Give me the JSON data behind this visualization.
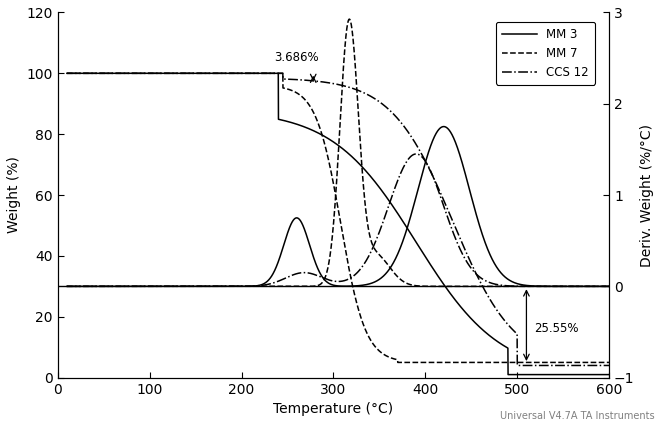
{
  "xlabel": "Temperature (°C)",
  "ylabel_left": "Weight (%)",
  "ylabel_right": "Deriv. Weight (%/°C)",
  "xlim": [
    0,
    600
  ],
  "ylim_left": [
    0,
    120
  ],
  "ylim_right": [
    -1,
    3
  ],
  "xticks": [
    0,
    100,
    200,
    300,
    400,
    500,
    600
  ],
  "yticks_left": [
    0,
    20,
    40,
    60,
    80,
    100,
    120
  ],
  "yticks_right": [
    -1,
    0,
    1,
    2,
    3
  ],
  "annotation1_text": "3.686%",
  "annotation2_text": "25.55%",
  "footer_text": "Universal V4.7A TA Instruments",
  "legend_labels": [
    "MM 3",
    "MM 7",
    "CCS 12"
  ]
}
